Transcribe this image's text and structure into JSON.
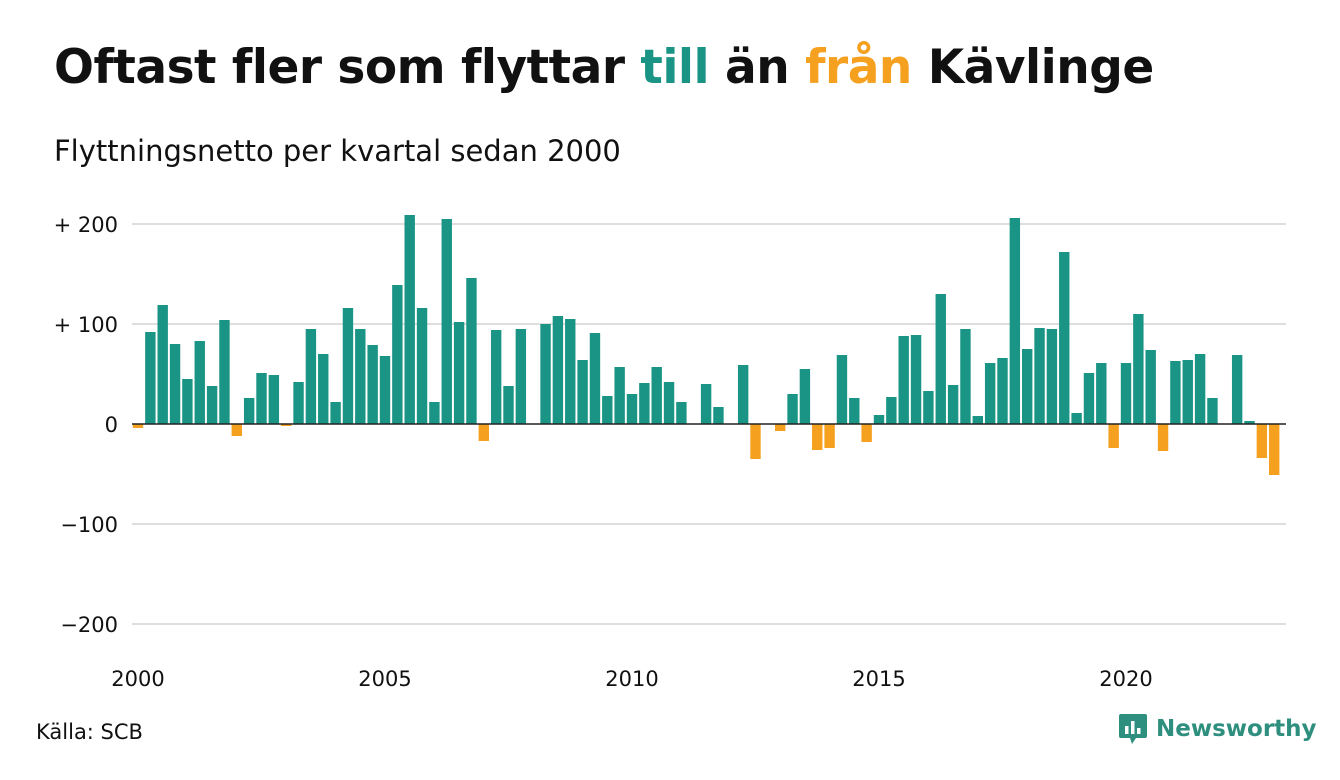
{
  "title": {
    "part1": "Oftast fler som flyttar ",
    "word_in": "till",
    "part2": " än ",
    "word_out": "från",
    "part3": " Kävlinge"
  },
  "subtitle": "Flyttningsnetto per kvartal sedan 2000",
  "source": "Källa: SCB",
  "brand": {
    "name": "Newsworthy",
    "icon": "newsworthy-logo-icon"
  },
  "colors": {
    "positive": "#1a9585",
    "negative": "#f5a01e",
    "text": "#111111",
    "grid": "#dedede",
    "brand": "#2e8f7e"
  },
  "chart_data": {
    "type": "bar",
    "x_start": "2000 Q1",
    "x_step": "quarter",
    "ylim": [
      -200,
      220
    ],
    "yticks": [
      {
        "value": 200,
        "label": "+ 200"
      },
      {
        "value": 100,
        "label": "+ 100"
      },
      {
        "value": 0,
        "label": "0"
      },
      {
        "value": -100,
        "label": "−100"
      },
      {
        "value": -200,
        "label": "−200"
      }
    ],
    "xticks": [
      {
        "year": 2000,
        "label": "2000"
      },
      {
        "year": 2005,
        "label": "2005"
      },
      {
        "year": 2010,
        "label": "2010"
      },
      {
        "year": 2015,
        "label": "2015"
      },
      {
        "year": 2020,
        "label": "2020"
      }
    ],
    "grid": true,
    "values": [
      -4,
      92,
      119,
      80,
      45,
      83,
      38,
      104,
      -12,
      26,
      51,
      49,
      -2,
      42,
      95,
      70,
      22,
      116,
      95,
      79,
      68,
      139,
      209,
      116,
      22,
      205,
      102,
      146,
      -17,
      94,
      38,
      95,
      0,
      100,
      108,
      105,
      64,
      91,
      28,
      57,
      30,
      41,
      57,
      42,
      22,
      0,
      40,
      17,
      0,
      59,
      -35,
      0,
      -7,
      30,
      55,
      -26,
      -24,
      69,
      26,
      -18,
      9,
      27,
      88,
      89,
      33,
      130,
      39,
      95,
      8,
      61,
      66,
      206,
      75,
      96,
      95,
      172,
      11,
      51,
      61,
      -24,
      61,
      110,
      74,
      -27,
      63,
      64,
      70,
      26,
      0,
      69,
      3,
      -34,
      -51
    ]
  }
}
